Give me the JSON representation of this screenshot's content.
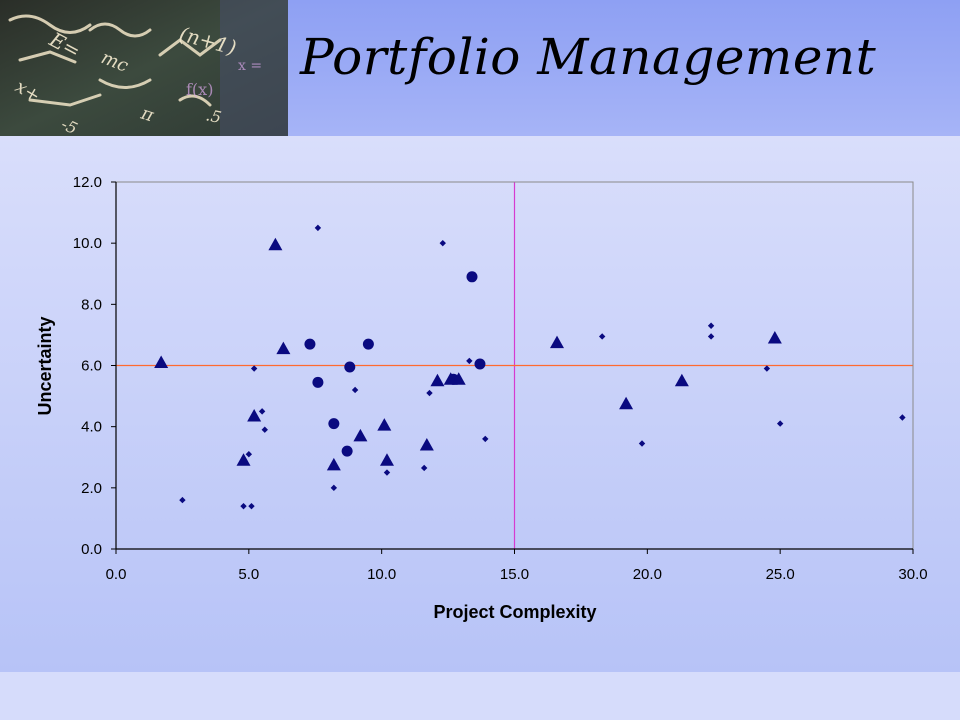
{
  "slide": {
    "title": "Portfolio Management",
    "header_image": "chalkboard-equations-photo"
  },
  "colors": {
    "marker": "#0a0a80",
    "vertical_line": "#d63bd0",
    "horizontal_line": "#ff6a30",
    "axis": "#000000"
  },
  "chart_data": {
    "type": "scatter",
    "title": "",
    "xlabel": "Project Complexity",
    "ylabel": "Uncertainty",
    "xlim": [
      0,
      30
    ],
    "ylim": [
      0,
      12
    ],
    "x_ticks": [
      "0.0",
      "5.0",
      "10.0",
      "15.0",
      "20.0",
      "25.0",
      "30.0"
    ],
    "y_ticks": [
      "0.0",
      "2.0",
      "4.0",
      "6.0",
      "8.0",
      "10.0",
      "12.0"
    ],
    "grid": false,
    "legend": "none",
    "reference_lines": {
      "vertical_x": 15.0,
      "horizontal_y": 6.0
    },
    "series": [
      {
        "marker": "diamond",
        "points": [
          [
            2.5,
            1.6
          ],
          [
            4.8,
            1.4
          ],
          [
            5.1,
            1.4
          ],
          [
            5.0,
            3.1
          ],
          [
            5.2,
            5.9
          ],
          [
            5.5,
            4.5
          ],
          [
            5.6,
            3.9
          ],
          [
            7.6,
            10.5
          ],
          [
            8.2,
            2.0
          ],
          [
            9.0,
            5.2
          ],
          [
            10.2,
            2.5
          ],
          [
            11.6,
            2.65
          ],
          [
            11.8,
            5.1
          ],
          [
            12.3,
            10.0
          ],
          [
            13.3,
            6.15
          ],
          [
            13.9,
            3.6
          ],
          [
            18.3,
            6.95
          ],
          [
            19.8,
            3.45
          ],
          [
            22.4,
            7.3
          ],
          [
            22.4,
            6.95
          ],
          [
            24.5,
            5.9
          ],
          [
            25.0,
            4.1
          ],
          [
            29.6,
            4.3
          ]
        ]
      },
      {
        "marker": "circle",
        "points": [
          [
            7.3,
            6.7
          ],
          [
            7.6,
            5.45
          ],
          [
            8.2,
            4.1
          ],
          [
            8.7,
            3.2
          ],
          [
            8.8,
            5.95
          ],
          [
            9.5,
            6.7
          ],
          [
            12.7,
            5.55
          ],
          [
            13.4,
            8.9
          ],
          [
            13.7,
            6.05
          ]
        ]
      },
      {
        "marker": "triangle",
        "points": [
          [
            1.7,
            6.1
          ],
          [
            4.8,
            2.9
          ],
          [
            5.2,
            4.35
          ],
          [
            6.0,
            9.95
          ],
          [
            6.3,
            6.55
          ],
          [
            8.2,
            2.75
          ],
          [
            9.2,
            3.7
          ],
          [
            10.1,
            4.05
          ],
          [
            10.2,
            2.9
          ],
          [
            11.7,
            3.4
          ],
          [
            12.1,
            5.5
          ],
          [
            12.6,
            5.55
          ],
          [
            12.9,
            5.55
          ],
          [
            16.6,
            6.75
          ],
          [
            19.2,
            4.75
          ],
          [
            21.3,
            5.5
          ],
          [
            24.8,
            6.9
          ]
        ]
      }
    ]
  }
}
